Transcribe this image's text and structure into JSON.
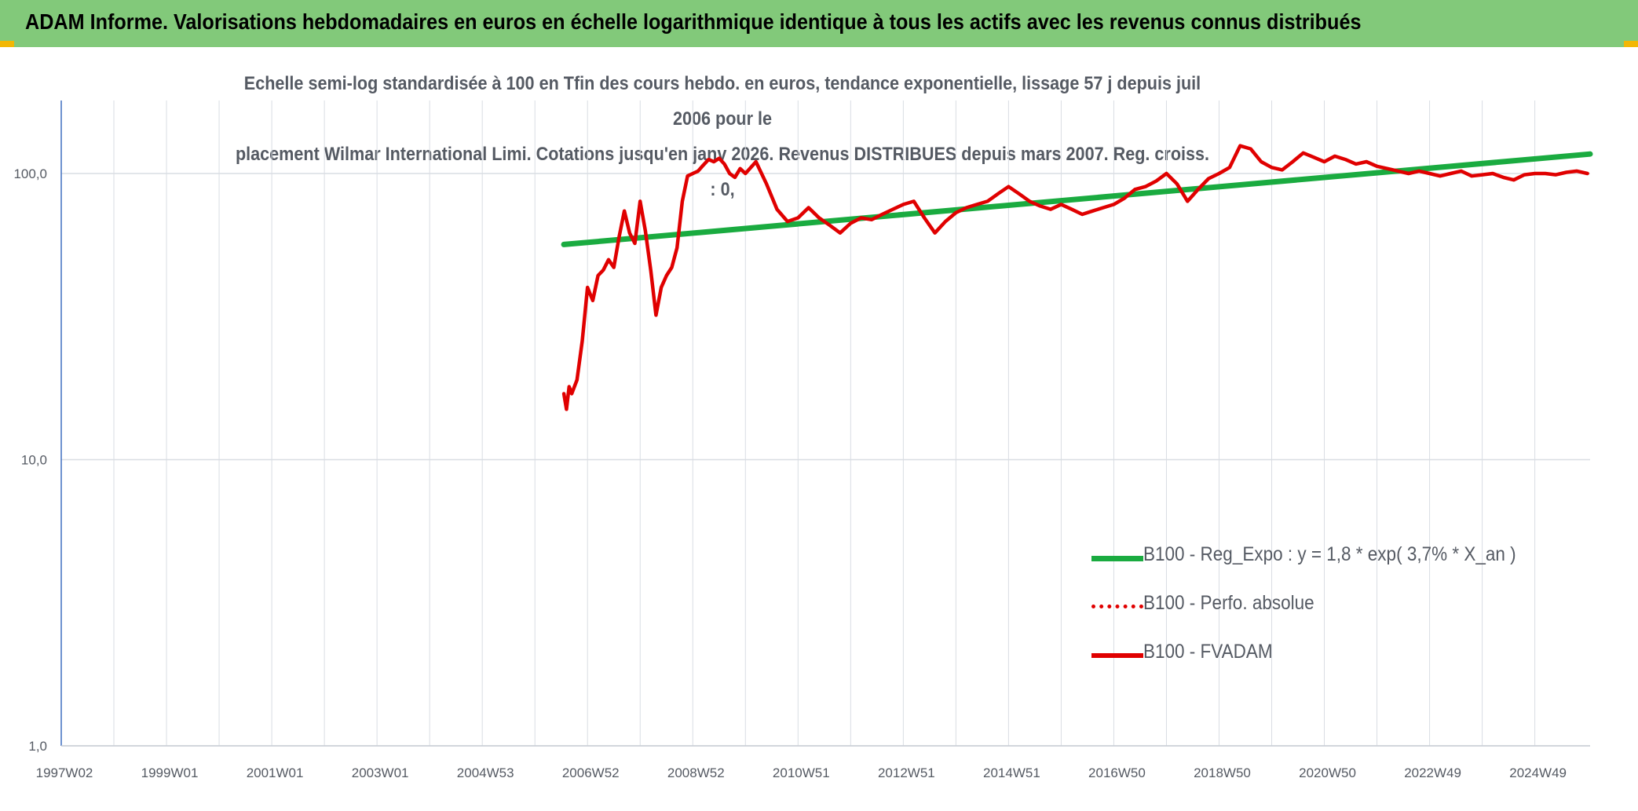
{
  "header": {
    "title": "ADAM Informe. Valorisations hebdomadaires en euros en échelle logarithmique identique à tous les actifs avec les revenus connus distribués"
  },
  "colors": {
    "header_bg": "#82c97a",
    "regression": "#1aab40",
    "fvadam": "#e00000",
    "perf": "#e00000",
    "grid": "#d9dde3",
    "axis": "#3f6fbf"
  },
  "chart_data": {
    "type": "line",
    "title_line1": "Echelle semi-log standardisée à 100 en Tfin des cours hebdo. en euros, tendance exponentielle, lissage 57 j depuis juil 2006 pour le",
    "title_line2": "placement Wilmar International Limi. Cotations jusqu'en janv 2026. Revenus DISTRIBUES depuis mars 2007. Reg. croiss. : 0,",
    "y_scale": "log",
    "ylim": [
      1,
      180
    ],
    "y_ticks": [
      "100,0",
      "10,0",
      "1,0"
    ],
    "x_ticks": [
      "1997W02",
      "1999W01",
      "2001W01",
      "2003W01",
      "2004W53",
      "2006W52",
      "2008W52",
      "2010W51",
      "2012W51",
      "2014W51",
      "2016W50",
      "2018W50",
      "2020W50",
      "2022W49",
      "2024W49"
    ],
    "xlim": [
      1997.0,
      2026.05
    ],
    "grid": true,
    "legend_position": "bottom-right",
    "legend": [
      {
        "label": "B100 - Reg_Expo : y = 1,8 * exp( 3,7% *  X_an )",
        "style": "solid-green"
      },
      {
        "label": "B100 - Perfo. absolue",
        "style": "dotted-red"
      },
      {
        "label": "B100 - FVADAM",
        "style": "solid-red"
      }
    ],
    "series": [
      {
        "name": "B100 - Reg_Expo : y = 1,8 * exp( 3,7% *  X_an )",
        "x": [
          2006.55,
          2026.05
        ],
        "y": [
          56.5,
          117
        ]
      },
      {
        "name": "B100 - FVADAM",
        "x": [
          2006.55,
          2006.6,
          2006.65,
          2006.7,
          2006.8,
          2006.9,
          2007.0,
          2007.1,
          2007.2,
          2007.3,
          2007.4,
          2007.5,
          2007.6,
          2007.7,
          2007.8,
          2007.9,
          2008.0,
          2008.1,
          2008.2,
          2008.3,
          2008.4,
          2008.5,
          2008.6,
          2008.7,
          2008.8,
          2008.9,
          2009.0,
          2009.1,
          2009.2,
          2009.3,
          2009.4,
          2009.5,
          2009.6,
          2009.7,
          2009.8,
          2009.9,
          2010.0,
          2010.2,
          2010.4,
          2010.6,
          2010.8,
          2011.0,
          2011.2,
          2011.4,
          2011.6,
          2011.8,
          2012.0,
          2012.2,
          2012.4,
          2012.6,
          2012.8,
          2013.0,
          2013.2,
          2013.4,
          2013.6,
          2013.8,
          2014.0,
          2014.2,
          2014.4,
          2014.6,
          2014.8,
          2015.0,
          2015.2,
          2015.4,
          2015.6,
          2015.8,
          2016.0,
          2016.2,
          2016.4,
          2016.6,
          2016.8,
          2017.0,
          2017.2,
          2017.4,
          2017.6,
          2017.8,
          2018.0,
          2018.2,
          2018.4,
          2018.6,
          2018.8,
          2019.0,
          2019.2,
          2019.4,
          2019.6,
          2019.8,
          2020.0,
          2020.2,
          2020.4,
          2020.6,
          2020.8,
          2021.0,
          2021.2,
          2021.4,
          2021.6,
          2021.8,
          2022.0,
          2022.2,
          2022.4,
          2022.6,
          2022.8,
          2023.0,
          2023.2,
          2023.4,
          2023.6,
          2023.8,
          2024.0,
          2024.2,
          2024.4,
          2024.6,
          2024.8,
          2025.0,
          2025.2,
          2025.4,
          2025.6,
          2025.8,
          2026.0
        ],
        "y": [
          17,
          15,
          18,
          17,
          19,
          26,
          40,
          36,
          44,
          46,
          50,
          47,
          60,
          74,
          62,
          57,
          80,
          63,
          46,
          32,
          40,
          44,
          47,
          55,
          80,
          98,
          100,
          102,
          107,
          112,
          110,
          113,
          108,
          100,
          97,
          104,
          100,
          110,
          92,
          75,
          68,
          70,
          76,
          70,
          66,
          62,
          67,
          70,
          69,
          72,
          75,
          78,
          80,
          70,
          62,
          68,
          73,
          76,
          78,
          80,
          85,
          90,
          85,
          80,
          77,
          75,
          78,
          75,
          72,
          74,
          76,
          78,
          82,
          88,
          90,
          94,
          100,
          92,
          80,
          88,
          96,
          100,
          105,
          125,
          122,
          110,
          105,
          103,
          110,
          118,
          114,
          110,
          115,
          112,
          108,
          110,
          106,
          104,
          102,
          100,
          102,
          100,
          98,
          100,
          102,
          98,
          99,
          100,
          97,
          95,
          99,
          100,
          100,
          99,
          101,
          102,
          100
        ]
      }
    ]
  }
}
